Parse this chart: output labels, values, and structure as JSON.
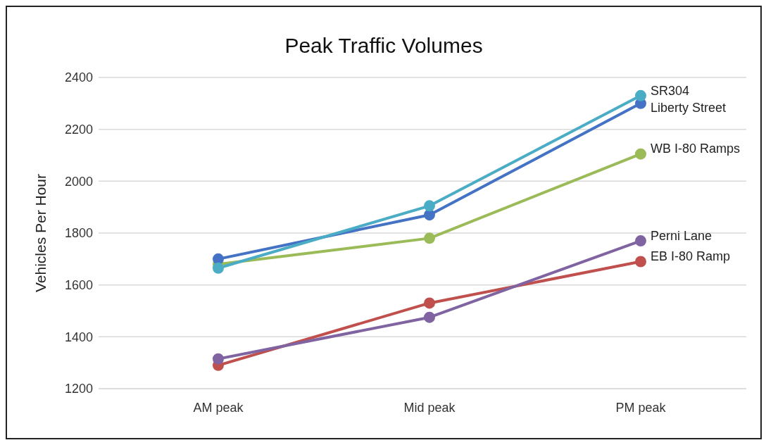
{
  "chart_data": {
    "type": "line",
    "title": "Peak Traffic Volumes",
    "ylabel": "Vehicles Per Hour",
    "categories": [
      "AM peak",
      "Mid peak",
      "PM peak"
    ],
    "series": [
      {
        "name": "SR304",
        "color": "#4bacc6",
        "values": [
          1665,
          1905,
          2330
        ]
      },
      {
        "name": "Liberty Street",
        "color": "#4472c4",
        "values": [
          1700,
          1870,
          2300
        ]
      },
      {
        "name": "WB I-80 Ramps",
        "color": "#9bbb59",
        "values": [
          1680,
          1780,
          2105
        ]
      },
      {
        "name": "Perni Lane",
        "color": "#8064a2",
        "values": [
          1315,
          1475,
          1770
        ]
      },
      {
        "name": "EB I-80 Ramp",
        "color": "#c0504d",
        "values": [
          1290,
          1530,
          1690
        ]
      }
    ],
    "ylim": [
      1200,
      2400
    ],
    "yticks": [
      1200,
      1400,
      1600,
      1800,
      2000,
      2200,
      2400
    ],
    "grid": "y",
    "legend": false,
    "marker": "circle",
    "line_style": "solid"
  }
}
